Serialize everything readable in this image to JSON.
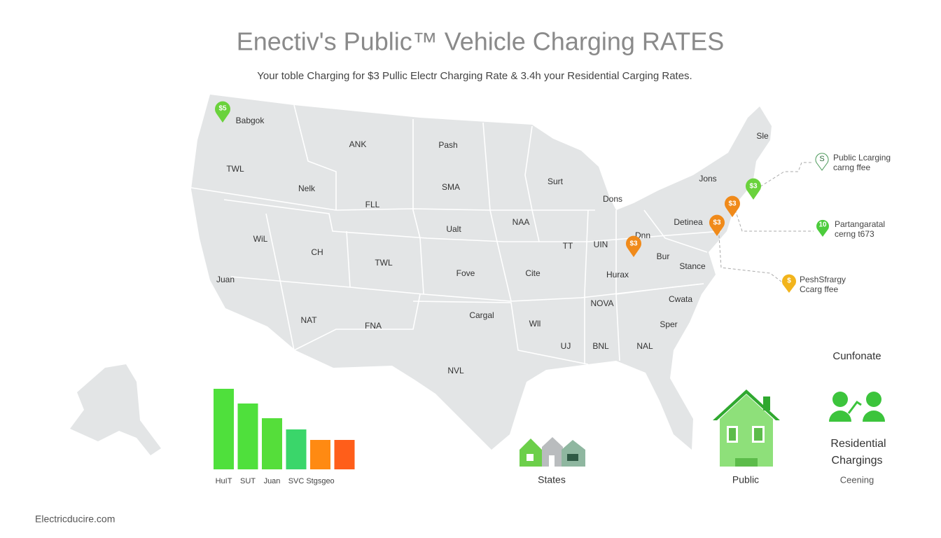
{
  "title": "Enectiv's Public™ Vehicle Charging RATES",
  "subtitle": "Your toble Charging for $3 Pullic Electr Charging Rate & 3.4h your Residential Carging Rates.",
  "map": {
    "state_labels": [
      "Babgok",
      "ANK",
      "Pash",
      "TWL",
      "Nelk",
      "SMA",
      "Surt",
      "Jons",
      "Sle",
      "FLL",
      "Dons",
      "Detinea",
      "NAA",
      "Ualt",
      "WiL",
      "CH",
      "TT",
      "UIN",
      "Dnn",
      "Bur",
      "TWL",
      "Stance",
      "Fove",
      "Cite",
      "Hurax",
      "Juan",
      "NOVA",
      "Cwata",
      "Cargal",
      "NAT",
      "FNA",
      "Wll",
      "Sper",
      "UJ",
      "BNL",
      "NAL",
      "NVL"
    ],
    "markers": [
      "$5",
      "$3",
      "$3",
      "$3",
      "$3"
    ]
  },
  "legend": [
    {
      "icon": "S",
      "lines": [
        "Public Lcarging",
        "carng ffee"
      ]
    },
    {
      "icon": "10",
      "lines": [
        "Partangaratal",
        "cerng t673"
      ]
    },
    {
      "icon": "$",
      "lines": [
        "PeshSfrargy",
        "Ccarg ffee"
      ]
    }
  ],
  "chart_data": {
    "type": "bar",
    "categories": [
      "HuIT",
      "SUT",
      "Juan",
      "SVC",
      "Stgsgeo",
      null
    ],
    "values": [
      115,
      94,
      73,
      57,
      42,
      42
    ],
    "colors": [
      "#4fe03c",
      "#4fe03c",
      "#55de3a",
      "#3ad66a",
      "#ff8a12",
      "#ff5e1a"
    ]
  },
  "icons": {
    "states": "States",
    "public": "Public"
  },
  "residential": {
    "heading": "Cunfonate",
    "title": [
      "Residential",
      "Chargings"
    ],
    "label": "Ceening"
  },
  "footer": "Electricducire.com"
}
